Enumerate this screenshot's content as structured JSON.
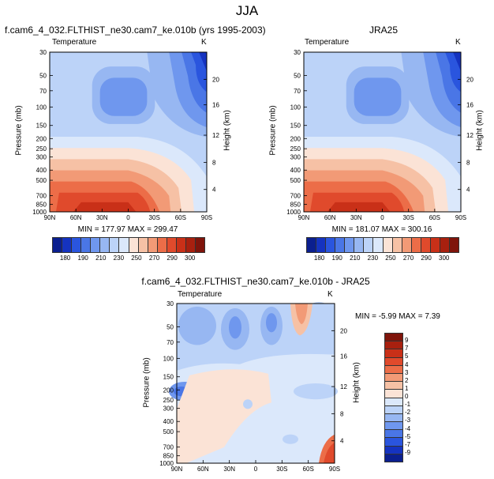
{
  "page_title": "JJA",
  "chart_data": [
    {
      "type": "heatmap",
      "title": "f.cam6_4_032.FLTHIST_ne30.cam7_ke.010b (yrs 1995-2003)",
      "variable": "Temperature",
      "units": "K",
      "xlabel": "",
      "ylabel": "Pressure (mb)",
      "ylabel_right": "Height (km)",
      "x_ticks": [
        "90N",
        "60N",
        "30N",
        "0",
        "30S",
        "60S",
        "90S"
      ],
      "y_ticks": [
        "30",
        "50",
        "70",
        "100",
        "150",
        "200",
        "250",
        "300",
        "400",
        "500",
        "700",
        "850",
        "1000"
      ],
      "height_ticks": [
        "20",
        "16",
        "12",
        "8",
        "4"
      ],
      "stats": "MIN = 177.97  MAX = 299.47",
      "min": 177.97,
      "max": 299.47,
      "colorbar_labels": [
        "180",
        "190",
        "210",
        "230",
        "250",
        "270",
        "290",
        "300"
      ]
    },
    {
      "type": "heatmap",
      "title": "JRA25",
      "variable": "Temperature",
      "units": "K",
      "xlabel": "",
      "ylabel": "Pressure (mb)",
      "ylabel_right": "Height (km)",
      "x_ticks": [
        "90N",
        "60N",
        "30N",
        "0",
        "30S",
        "60S",
        "90S"
      ],
      "y_ticks": [
        "30",
        "50",
        "70",
        "100",
        "150",
        "200",
        "250",
        "300",
        "400",
        "500",
        "700",
        "850",
        "1000"
      ],
      "height_ticks": [
        "20",
        "16",
        "12",
        "8",
        "4"
      ],
      "stats": "MIN = 181.07  MAX = 300.16",
      "min": 181.07,
      "max": 300.16,
      "colorbar_labels": [
        "180",
        "190",
        "210",
        "230",
        "250",
        "270",
        "290",
        "300"
      ]
    },
    {
      "type": "heatmap",
      "title": "f.cam6_4_032.FLTHIST_ne30.cam7_ke.010b - JRA25",
      "variable": "Temperature",
      "units": "K",
      "xlabel": "",
      "ylabel": "Pressure (mb)",
      "ylabel_right": "Height (km)",
      "x_ticks": [
        "90N",
        "60N",
        "30N",
        "0",
        "30S",
        "60S",
        "90S"
      ],
      "y_ticks": [
        "30",
        "50",
        "70",
        "100",
        "150",
        "200",
        "250",
        "300",
        "400",
        "500",
        "700",
        "850",
        "1000"
      ],
      "height_ticks": [
        "20",
        "16",
        "12",
        "8",
        "4"
      ],
      "stats": "MIN =  -5.99  MAX =   7.39",
      "min": -5.99,
      "max": 7.39,
      "colorbar_labels": [
        "9",
        "7",
        "5",
        "4",
        "3",
        "2",
        "1",
        "0",
        "-1",
        "-2",
        "-3",
        "-4",
        "-5",
        "-7",
        "-9"
      ]
    }
  ],
  "colors": {
    "abs_scale": [
      "#0b1f8f",
      "#1533c0",
      "#2a55de",
      "#4a76e6",
      "#6f97ee",
      "#97b7f2",
      "#bcd3f8",
      "#dbe8fb",
      "#fbe3d6",
      "#f6c1a5",
      "#f29a76",
      "#ec6d48",
      "#e04a2c",
      "#c93018",
      "#a8200f",
      "#7f140b"
    ],
    "diff_scale": [
      "#0b1f8f",
      "#1533c0",
      "#2a55de",
      "#4a76e6",
      "#6f97ee",
      "#97b7f2",
      "#bcd3f8",
      "#dbe8fb",
      "#fbe3d6",
      "#f6c1a5",
      "#f29a76",
      "#ec6d48",
      "#e04a2c",
      "#c93018",
      "#a8200f",
      "#7f140b"
    ]
  }
}
